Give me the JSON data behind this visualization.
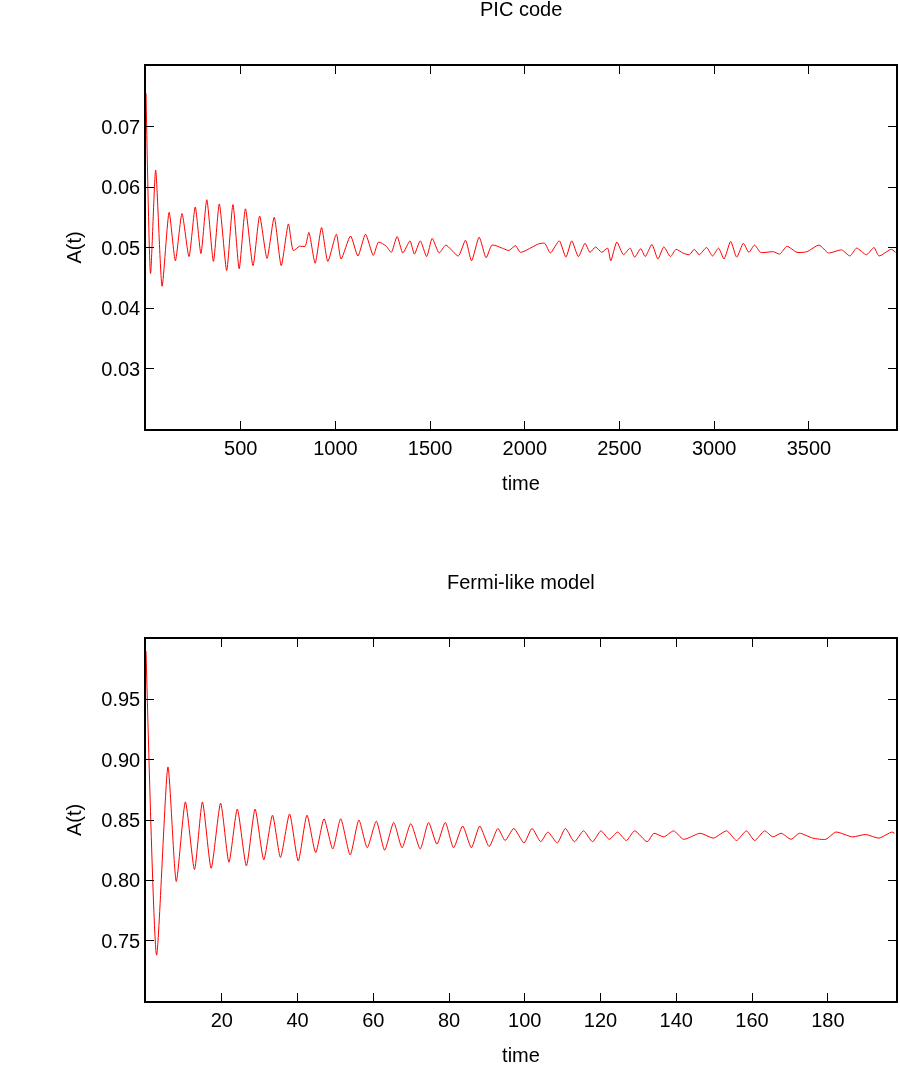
{
  "chart_data": [
    {
      "type": "line",
      "title": "PIC code",
      "xlabel": "time",
      "ylabel": "A(t)",
      "xlim": [
        0,
        3960
      ],
      "ylim": [
        0.02,
        0.08
      ],
      "xticks": [
        500,
        1000,
        1500,
        2000,
        2500,
        3000,
        3500
      ],
      "yticks": [
        0.03,
        0.04,
        0.05,
        0.06,
        0.07
      ],
      "series": [
        {
          "color": "#ff0000",
          "x": [
            0,
            24,
            51,
            85,
            122,
            155,
            190,
            227,
            260,
            290,
            321,
            356,
            387,
            426,
            459,
            492,
            525,
            565,
            600,
            639,
            677,
            714,
            752,
            778,
            810,
            840,
            860,
            893,
            927,
            960,
            1005,
            1030,
            1080,
            1119,
            1159,
            1200,
            1228,
            1269,
            1295,
            1326,
            1356,
            1394,
            1417,
            1448,
            1482,
            1511,
            1548,
            1583,
            1649,
            1687,
            1719,
            1759,
            1796,
            1827,
            1888,
            1916,
            1951,
            1977,
            2073,
            2105,
            2135,
            2182,
            2217,
            2248,
            2283,
            2318,
            2344,
            2374,
            2406,
            2437,
            2454,
            2486,
            2521,
            2556,
            2580,
            2612,
            2636,
            2671,
            2703,
            2734,
            2769,
            2799,
            2834,
            2869,
            2895,
            2921,
            2960,
            2991,
            3023,
            3052,
            3087,
            3119,
            3154,
            3183,
            3213,
            3245,
            3314,
            3346,
            3384,
            3437,
            3489,
            3554,
            3603,
            3673,
            3717,
            3752,
            3804,
            3844,
            3870,
            3935,
            3958
          ],
          "values": [
            0.0755,
            0.0457,
            0.0628,
            0.0436,
            0.0558,
            0.0478,
            0.0556,
            0.0485,
            0.0567,
            0.049,
            0.0579,
            0.0477,
            0.0572,
            0.0462,
            0.0571,
            0.0465,
            0.0564,
            0.047,
            0.0552,
            0.0482,
            0.055,
            0.047,
            0.0539,
            0.0495,
            0.0502,
            0.0502,
            0.0525,
            0.0474,
            0.0533,
            0.0477,
            0.0522,
            0.0481,
            0.0519,
            0.0486,
            0.0522,
            0.0487,
            0.0509,
            0.0502,
            0.0492,
            0.0518,
            0.0491,
            0.0511,
            0.0489,
            0.0511,
            0.0485,
            0.0515,
            0.0491,
            0.0504,
            0.0486,
            0.0512,
            0.0478,
            0.0517,
            0.0483,
            0.0504,
            0.0498,
            0.0495,
            0.0503,
            0.0492,
            0.0506,
            0.0507,
            0.0491,
            0.0511,
            0.0484,
            0.0511,
            0.0485,
            0.0507,
            0.0492,
            0.0501,
            0.0492,
            0.0499,
            0.0478,
            0.0509,
            0.0488,
            0.0499,
            0.0484,
            0.0498,
            0.0485,
            0.0505,
            0.0481,
            0.0501,
            0.0485,
            0.0497,
            0.0491,
            0.0488,
            0.0497,
            0.0488,
            0.05,
            0.0486,
            0.0499,
            0.0481,
            0.051,
            0.0484,
            0.0507,
            0.0492,
            0.0504,
            0.0492,
            0.0493,
            0.0489,
            0.0502,
            0.0492,
            0.0493,
            0.0504,
            0.0491,
            0.0496,
            0.0486,
            0.0499,
            0.0488,
            0.05,
            0.0486,
            0.0497,
            0.0492
          ]
        }
      ]
    },
    {
      "type": "line",
      "title": "Fermi-like model",
      "xlabel": "time",
      "ylabel": "A(t)",
      "xlim": [
        0,
        198
      ],
      "ylim": [
        0.7,
        1.0
      ],
      "xticks": [
        20,
        40,
        60,
        80,
        100,
        120,
        140,
        160,
        180
      ],
      "yticks": [
        {
          "value": 0.75,
          "label": "0.75"
        },
        {
          "value": 0.8,
          "label": "0.80"
        },
        {
          "value": 0.85,
          "label": "0.85"
        },
        {
          "value": 0.9,
          "label": "0.90"
        },
        {
          "value": 0.95,
          "label": "0.95"
        }
      ],
      "series": [
        {
          "color": "#ff0000",
          "x": [
            0,
            2.8,
            5.8,
            8.0,
            10.4,
            12.8,
            14.9,
            17.2,
            19.7,
            21.9,
            24.1,
            26.5,
            28.8,
            31.1,
            33.4,
            35.5,
            37.9,
            40.2,
            42.5,
            44.8,
            47.0,
            49.3,
            51.4,
            53.9,
            56.2,
            58.4,
            60.8,
            63.0,
            65.4,
            67.6,
            69.9,
            72.4,
            74.6,
            76.8,
            79.0,
            81.2,
            83.6,
            85.9,
            88.1,
            90.6,
            92.9,
            94.8,
            97.1,
            99.8,
            101.9,
            104.2,
            106.1,
            108.6,
            110.7,
            113.1,
            115.5,
            117.9,
            120.1,
            122.3,
            124.5,
            126.8,
            129.0,
            132.3,
            134.1,
            136.7,
            139.3,
            141.9,
            146.3,
            149.8,
            153.3,
            155.9,
            158.5,
            160.7,
            163.3,
            165.5,
            167.7,
            170.3,
            172.5,
            176.0,
            179.5,
            182.1,
            186.5,
            190.0,
            193.5,
            196.9,
            197.6
          ],
          "values": [
            0.99,
            0.738,
            0.894,
            0.799,
            0.865,
            0.809,
            0.865,
            0.81,
            0.864,
            0.815,
            0.859,
            0.812,
            0.859,
            0.817,
            0.854,
            0.819,
            0.855,
            0.816,
            0.854,
            0.823,
            0.851,
            0.826,
            0.851,
            0.821,
            0.85,
            0.827,
            0.849,
            0.825,
            0.848,
            0.827,
            0.847,
            0.826,
            0.848,
            0.83,
            0.848,
            0.827,
            0.845,
            0.827,
            0.845,
            0.828,
            0.843,
            0.833,
            0.843,
            0.831,
            0.843,
            0.832,
            0.84,
            0.831,
            0.843,
            0.832,
            0.841,
            0.832,
            0.841,
            0.834,
            0.84,
            0.833,
            0.841,
            0.832,
            0.839,
            0.836,
            0.841,
            0.834,
            0.839,
            0.835,
            0.841,
            0.833,
            0.841,
            0.833,
            0.841,
            0.836,
            0.839,
            0.834,
            0.839,
            0.835,
            0.834,
            0.84,
            0.836,
            0.838,
            0.835,
            0.84,
            0.839
          ]
        }
      ]
    }
  ]
}
